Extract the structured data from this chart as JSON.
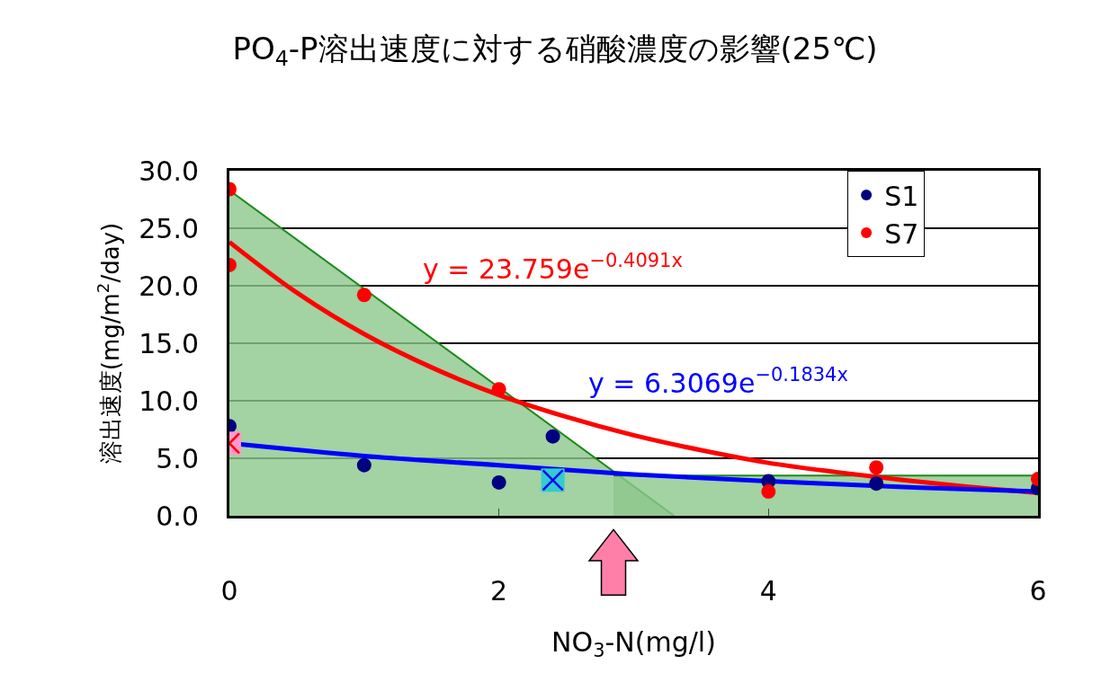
{
  "chart_data": {
    "type": "scatter",
    "title": "PO$_{4}$-P溶出速度に対する硝酸濃度の影響(25℃)",
    "xlabel": "NO$_{3}$-N(mg/l)",
    "ylabel": "溶出速度(mg/m$^{2}$/day)",
    "xlim": [
      0,
      6
    ],
    "xticks": [
      0,
      2,
      4,
      6
    ],
    "ylim": [
      0,
      30
    ],
    "yticks": [
      {
        "value": 0,
        "label": "0.0"
      },
      {
        "value": 5,
        "label": "5.0"
      },
      {
        "value": 10,
        "label": "10.0"
      },
      {
        "value": 15,
        "label": "15.0"
      },
      {
        "value": 20,
        "label": "20.0"
      },
      {
        "value": 25,
        "label": "25.0"
      },
      {
        "value": 30,
        "label": "30.0"
      }
    ],
    "grid": "y",
    "legend": "top right",
    "marker": "circle",
    "series": [
      {
        "type": "area",
        "color": "#8cc78c",
        "marker": "none",
        "x": [
          0,
          3.3
        ],
        "values": [
          28.3,
          0
        ]
      },
      {
        "type": "area",
        "color": "#8cc78c",
        "marker": "none",
        "x": [
          2.85,
          6
        ],
        "values": [
          3.5,
          3.5
        ]
      },
      {
        "type": "line",
        "color": "#ff0000",
        "marker": "none",
        "x": [
          0,
          0.5,
          1,
          1.5,
          2,
          2.5,
          3,
          3.5,
          4,
          4.5,
          5,
          5.5,
          6
        ],
        "values": [
          23.8,
          19.4,
          15.8,
          12.9,
          10.5,
          8.6,
          7.0,
          5.7,
          4.6,
          3.8,
          3.1,
          2.5,
          2.0
        ]
      },
      {
        "type": "line",
        "color": "#0000ff",
        "marker": "none",
        "x": [
          0,
          1,
          2,
          3,
          4,
          5,
          6
        ],
        "values": [
          6.3,
          5.2,
          4.4,
          3.6,
          3.0,
          2.5,
          2.1
        ]
      },
      {
        "name": "S1",
        "color": "#000080",
        "x": [
          0,
          1,
          2,
          2.4,
          4,
          4.8,
          6
        ],
        "values": [
          7.8,
          4.4,
          2.9,
          6.9,
          3.0,
          2.8,
          2.4
        ]
      },
      {
        "name": "S7",
        "color": "#ff0000",
        "x": [
          0,
          0,
          1,
          2,
          4,
          4.8,
          6
        ],
        "values": [
          28.4,
          21.8,
          19.2,
          11.0,
          2.1,
          4.2,
          3.2
        ]
      },
      {
        "color": "#ff99cc",
        "marker": "square",
        "x": [
          0
        ],
        "values": [
          6.3
        ]
      },
      {
        "color": "#ff0000",
        "marker": "cross",
        "x": [
          0
        ],
        "values": [
          6.3
        ]
      },
      {
        "color": "#33cccc",
        "marker": "square",
        "x": [
          2.4
        ],
        "values": [
          3.1
        ]
      },
      {
        "color": "#0000ff",
        "marker": "cross",
        "x": [
          2.4
        ],
        "values": [
          3.1
        ]
      }
    ],
    "annotations": [
      "y = 23.759e$^{−0.4091x}$",
      "y = 6.3069e$^{−0.1834x}$"
    ]
  }
}
